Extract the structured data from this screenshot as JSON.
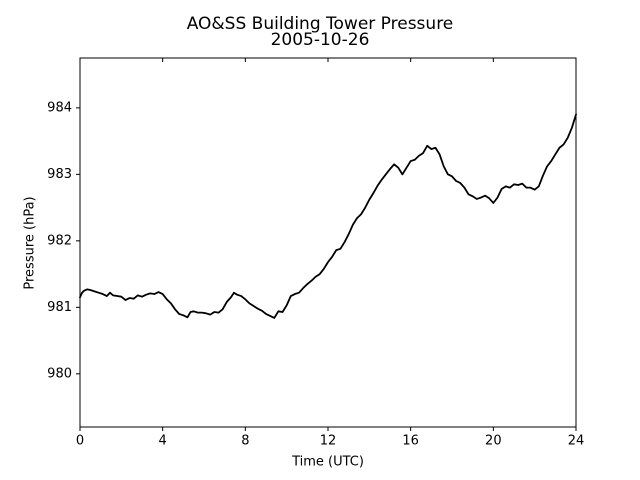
{
  "chart_data": {
    "type": "line",
    "title": "AO&SS Building Tower Pressure",
    "subtitle": "2005-10-26",
    "xlabel": "Time (UTC)",
    "ylabel": "Pressure (hPa)",
    "xlim": [
      0,
      24
    ],
    "ylim": [
      979.2,
      984.75
    ],
    "xticks": [
      0,
      4,
      8,
      12,
      16,
      20,
      24
    ],
    "yticks": [
      980,
      981,
      982,
      983,
      984
    ],
    "xtick_labels": [
      "0",
      "4",
      "8",
      "12",
      "16",
      "20",
      "24"
    ],
    "ytick_labels": [
      "980",
      "981",
      "982",
      "983",
      "984"
    ],
    "grid": false,
    "line_color": "#000000",
    "series": [
      {
        "x": [
          0.0,
          0.1,
          0.2,
          0.35,
          0.5,
          0.7,
          0.9,
          1.1,
          1.3,
          1.45,
          1.6,
          1.8,
          2.0,
          2.2,
          2.4,
          2.6,
          2.8,
          3.0,
          3.2,
          3.4,
          3.6,
          3.8,
          4.0,
          4.2,
          4.4,
          4.6,
          4.8,
          5.0,
          5.2,
          5.35,
          5.5,
          5.7,
          5.9,
          6.1,
          6.3,
          6.5,
          6.7,
          6.9,
          7.1,
          7.3,
          7.45,
          7.6,
          7.8,
          8.0,
          8.2,
          8.4,
          8.6,
          8.8,
          9.0,
          9.2,
          9.4,
          9.6,
          9.8,
          10.0,
          10.2,
          10.4,
          10.6,
          10.8,
          11.0,
          11.2,
          11.4,
          11.6,
          11.8,
          12.0,
          12.2,
          12.4,
          12.6,
          12.8,
          13.0,
          13.2,
          13.4,
          13.6,
          13.8,
          14.0,
          14.2,
          14.4,
          14.6,
          14.8,
          15.0,
          15.2,
          15.4,
          15.6,
          15.8,
          16.0,
          16.2,
          16.4,
          16.6,
          16.8,
          17.0,
          17.2,
          17.4,
          17.6,
          17.8,
          18.0,
          18.2,
          18.4,
          18.6,
          18.8,
          19.0,
          19.2,
          19.4,
          19.6,
          19.8,
          20.0,
          20.2,
          20.4,
          20.6,
          20.8,
          21.0,
          21.2,
          21.4,
          21.6,
          21.8,
          22.0,
          22.2,
          22.4,
          22.6,
          22.8,
          23.0,
          23.2,
          23.4,
          23.6,
          23.8,
          23.9,
          24.0
        ],
        "y": [
          981.15,
          981.22,
          981.25,
          981.27,
          981.26,
          981.24,
          981.22,
          981.2,
          981.17,
          981.22,
          981.18,
          981.17,
          981.16,
          981.11,
          981.14,
          981.13,
          981.18,
          981.16,
          981.19,
          981.21,
          981.2,
          981.23,
          981.2,
          981.12,
          981.06,
          980.97,
          980.9,
          980.88,
          980.85,
          980.93,
          980.94,
          980.92,
          980.92,
          980.91,
          980.89,
          980.93,
          980.92,
          980.97,
          981.08,
          981.15,
          981.22,
          981.19,
          981.17,
          981.12,
          981.06,
          981.02,
          980.98,
          980.95,
          980.9,
          980.87,
          980.84,
          980.94,
          980.93,
          981.03,
          981.17,
          981.2,
          981.22,
          981.29,
          981.35,
          981.4,
          981.46,
          981.5,
          981.58,
          981.68,
          981.76,
          981.86,
          981.88,
          981.98,
          982.1,
          982.24,
          982.34,
          982.4,
          982.5,
          982.62,
          982.72,
          982.83,
          982.92,
          983.0,
          983.08,
          983.15,
          983.1,
          983.0,
          983.1,
          983.2,
          983.22,
          983.28,
          983.32,
          983.43,
          983.38,
          983.4,
          983.3,
          983.12,
          983.0,
          982.97,
          982.9,
          982.87,
          982.8,
          982.7,
          982.67,
          982.63,
          982.65,
          982.68,
          982.64,
          982.57,
          982.65,
          982.78,
          982.82,
          982.8,
          982.85,
          982.84,
          982.86,
          982.8,
          982.8,
          982.77,
          982.82,
          982.98,
          983.12,
          983.2,
          983.3,
          983.4,
          983.45,
          983.55,
          983.7,
          983.8,
          983.9
        ]
      }
    ]
  }
}
